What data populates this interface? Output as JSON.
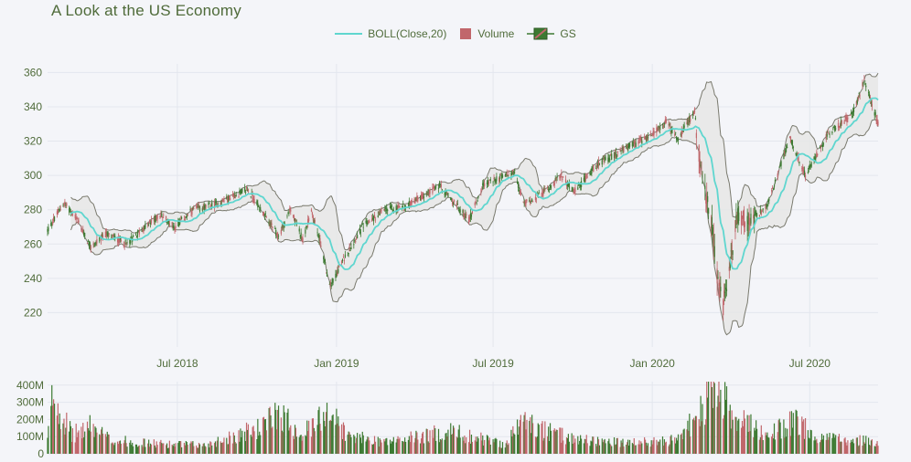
{
  "title": "A Look at the US Economy",
  "legend": {
    "boll": "BOLL(Close,20)",
    "volume": "Volume",
    "gs": "GS"
  },
  "colors": {
    "background": "#f4f5f9",
    "grid": "#e3e6ee",
    "text": "#4f6b3a",
    "increasing": "#3d7a32",
    "decreasing": "#c1666b",
    "boll_mid": "#5fd6cf",
    "band_fill": "#e6e6e6",
    "band_line": "#7a7a6e"
  },
  "chart_data": {
    "type": "candlestick",
    "title": "A Look at the US Economy",
    "series": [
      "GS",
      "Volume",
      "BOLL(Close,20)"
    ],
    "price_axis": {
      "range": [
        200,
        365
      ],
      "ticks": [
        220,
        240,
        260,
        280,
        300,
        320,
        340,
        360
      ]
    },
    "volume_axis": {
      "range": [
        0,
        420000000
      ],
      "ticks": [
        0,
        100000000,
        200000000,
        300000000,
        400000000
      ],
      "tick_labels": [
        "0",
        "100M",
        "200M",
        "300M",
        "400M"
      ]
    },
    "x_axis": {
      "range": [
        "2018-02-01",
        "2020-09-18"
      ],
      "ticks": [
        "2018-07-01",
        "2019-01-01",
        "2019-07-01",
        "2020-01-01",
        "2020-07-01"
      ],
      "tick_labels": [
        "Jul 2018",
        "Jan 2019",
        "Jul 2019",
        "Jan 2020",
        "Jul 2020"
      ]
    },
    "close_anchors": [
      [
        "2018-02-01",
        268
      ],
      [
        "2018-02-20",
        284
      ],
      [
        "2018-03-05",
        276
      ],
      [
        "2018-03-23",
        258
      ],
      [
        "2018-04-10",
        266
      ],
      [
        "2018-05-03",
        260
      ],
      [
        "2018-05-25",
        270
      ],
      [
        "2018-06-12",
        277
      ],
      [
        "2018-06-28",
        270
      ],
      [
        "2018-07-20",
        280
      ],
      [
        "2018-08-15",
        283
      ],
      [
        "2018-09-20",
        292
      ],
      [
        "2018-10-11",
        276
      ],
      [
        "2018-10-26",
        264
      ],
      [
        "2018-11-08",
        280
      ],
      [
        "2018-11-23",
        263
      ],
      [
        "2018-12-03",
        279
      ],
      [
        "2018-12-14",
        260
      ],
      [
        "2018-12-24",
        235
      ],
      [
        "2019-01-08",
        250
      ],
      [
        "2019-01-31",
        270
      ],
      [
        "2019-02-26",
        280
      ],
      [
        "2019-03-22",
        282
      ],
      [
        "2019-04-30",
        294
      ],
      [
        "2019-05-15",
        285
      ],
      [
        "2019-06-03",
        274
      ],
      [
        "2019-06-20",
        295
      ],
      [
        "2019-07-26",
        302
      ],
      [
        "2019-08-05",
        283
      ],
      [
        "2019-08-28",
        290
      ],
      [
        "2019-09-18",
        300
      ],
      [
        "2019-10-03",
        290
      ],
      [
        "2019-10-28",
        306
      ],
      [
        "2019-11-29",
        315
      ],
      [
        "2019-12-26",
        322
      ],
      [
        "2020-01-17",
        331
      ],
      [
        "2020-01-31",
        321
      ],
      [
        "2020-02-19",
        338
      ],
      [
        "2020-02-27",
        296
      ],
      [
        "2020-03-09",
        275
      ],
      [
        "2020-03-16",
        240
      ],
      [
        "2020-03-23",
        224
      ],
      [
        "2020-04-09",
        278
      ],
      [
        "2020-04-21",
        272
      ],
      [
        "2020-05-13",
        282
      ],
      [
        "2020-06-08",
        322
      ],
      [
        "2020-06-26",
        300
      ],
      [
        "2020-07-22",
        324
      ],
      [
        "2020-08-20",
        336
      ],
      [
        "2020-09-02",
        356
      ],
      [
        "2020-09-18",
        330
      ]
    ],
    "volume_anchors": [
      [
        "2018-02-01",
        80000000
      ],
      [
        "2018-02-07",
        350000000
      ],
      [
        "2018-03-01",
        110000000
      ],
      [
        "2018-03-23",
        160000000
      ],
      [
        "2018-04-15",
        80000000
      ],
      [
        "2018-06-01",
        60000000
      ],
      [
        "2018-08-01",
        50000000
      ],
      [
        "2018-10-10",
        160000000
      ],
      [
        "2018-10-25",
        250000000
      ],
      [
        "2018-11-20",
        120000000
      ],
      [
        "2018-12-07",
        160000000
      ],
      [
        "2018-12-21",
        270000000
      ],
      [
        "2019-01-15",
        100000000
      ],
      [
        "2019-03-01",
        70000000
      ],
      [
        "2019-05-13",
        130000000
      ],
      [
        "2019-07-15",
        55000000
      ],
      [
        "2019-08-05",
        200000000
      ],
      [
        "2019-08-23",
        140000000
      ],
      [
        "2019-10-01",
        90000000
      ],
      [
        "2019-12-01",
        60000000
      ],
      [
        "2020-01-31",
        80000000
      ],
      [
        "2020-02-27",
        250000000
      ],
      [
        "2020-03-12",
        390000000
      ],
      [
        "2020-03-20",
        330000000
      ],
      [
        "2020-04-15",
        180000000
      ],
      [
        "2020-05-15",
        110000000
      ],
      [
        "2020-06-11",
        190000000
      ],
      [
        "2020-07-15",
        90000000
      ],
      [
        "2020-09-18",
        70000000
      ]
    ],
    "bollinger": {
      "window": 20,
      "stdev": 2
    }
  }
}
